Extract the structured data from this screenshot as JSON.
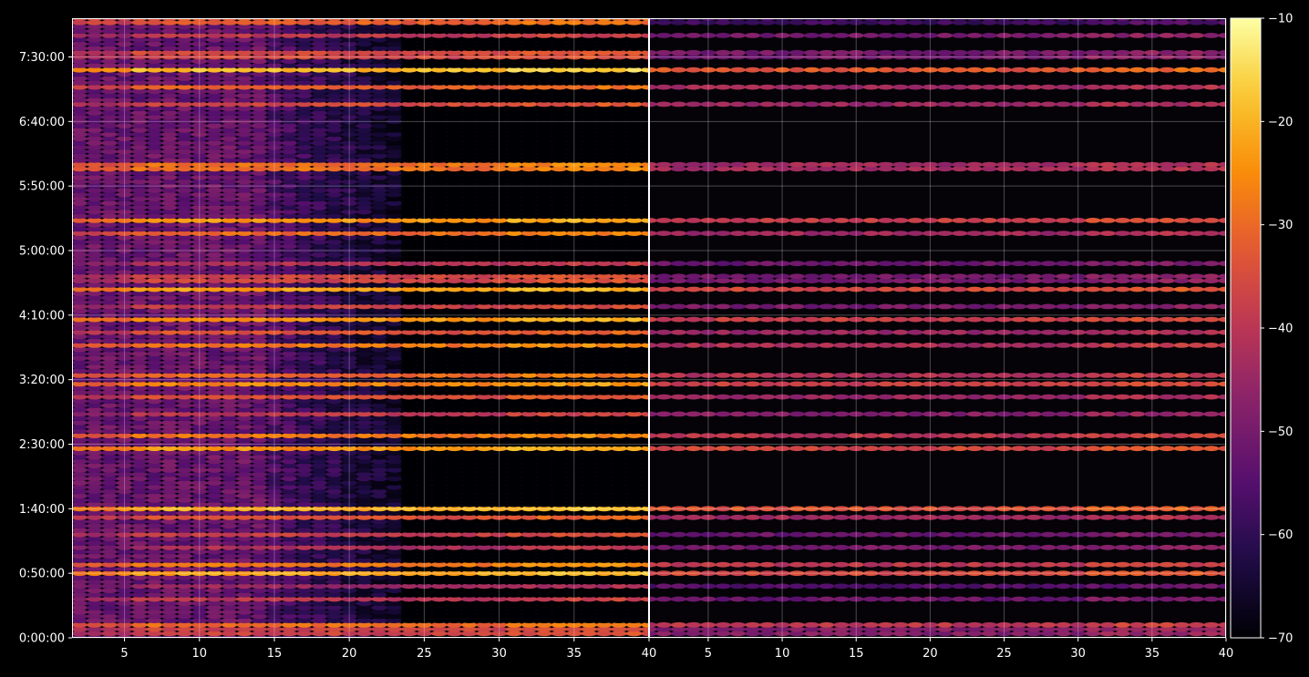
{
  "chart_data": {
    "type": "heatmap",
    "title": "",
    "xlabel": "",
    "ylabel": "",
    "panels": [
      {
        "name": "",
        "xlim": [
          1.5,
          40
        ],
        "x_ticks": [
          5,
          10,
          15,
          20,
          25,
          30,
          35,
          40
        ],
        "x_tick_labels": [
          "5",
          "10",
          "15",
          "20",
          "25",
          "30",
          "35",
          "40"
        ]
      },
      {
        "name": "",
        "xlim": [
          1,
          40
        ],
        "x_ticks": [
          5,
          10,
          15,
          20,
          25,
          30,
          35,
          40
        ],
        "x_tick_labels": [
          "5",
          "10",
          "15",
          "20",
          "25",
          "30",
          "35",
          "40"
        ]
      }
    ],
    "y_axis": {
      "range_seconds": [
        0,
        28800
      ],
      "ticks_seconds": [
        0,
        3000,
        6000,
        9000,
        12000,
        15000,
        18000,
        21000,
        24000,
        27000
      ],
      "tick_labels": [
        "0:00:00",
        "0:50:00",
        "1:40:00",
        "2:30:00",
        "3:20:00",
        "4:10:00",
        "5:00:00",
        "5:50:00",
        "6:40:00",
        "7:30:00"
      ]
    },
    "grid": true,
    "colorbar": {
      "colormap": "inferno",
      "range": [
        -70,
        -10
      ],
      "ticks": [
        -70,
        -60,
        -50,
        -40,
        -30,
        -20,
        -10
      ],
      "tick_labels": [
        "−70",
        "−60",
        "−50",
        "−40",
        "−30",
        "−20",
        "−10"
      ]
    },
    "bands": [
      {
        "t": 300,
        "left": -27,
        "right": -38
      },
      {
        "t": 600,
        "left": -30,
        "right": -40
      },
      {
        "t": 1800,
        "left": -40,
        "right": -52
      },
      {
        "t": 2400,
        "left": -45,
        "right": -55
      },
      {
        "t": 3000,
        "left": -22,
        "right": -36
      },
      {
        "t": 3400,
        "left": -28,
        "right": -40
      },
      {
        "t": 4200,
        "left": -42,
        "right": -50
      },
      {
        "t": 4800,
        "left": -38,
        "right": -52
      },
      {
        "t": 5600,
        "left": -34,
        "right": -44
      },
      {
        "t": 6000,
        "left": -21,
        "right": -34
      },
      {
        "t": 8800,
        "left": -24,
        "right": -36
      },
      {
        "t": 9400,
        "left": -28,
        "right": -40
      },
      {
        "t": 10400,
        "left": -40,
        "right": -48
      },
      {
        "t": 11200,
        "left": -35,
        "right": -45
      },
      {
        "t": 11800,
        "left": -26,
        "right": -38
      },
      {
        "t": 12200,
        "left": -30,
        "right": -41
      },
      {
        "t": 13600,
        "left": -28,
        "right": -42
      },
      {
        "t": 14200,
        "left": -34,
        "right": -45
      },
      {
        "t": 14800,
        "left": -24,
        "right": -38
      },
      {
        "t": 15400,
        "left": -38,
        "right": -50
      },
      {
        "t": 16200,
        "left": -23,
        "right": -36
      },
      {
        "t": 16700,
        "left": -27,
        "right": -40
      },
      {
        "t": 17400,
        "left": -42,
        "right": -52
      },
      {
        "t": 18800,
        "left": -30,
        "right": -44
      },
      {
        "t": 19400,
        "left": -24,
        "right": -38
      },
      {
        "t": 21900,
        "left": -19,
        "right": -34
      },
      {
        "t": 24800,
        "left": -36,
        "right": -45
      },
      {
        "t": 25600,
        "left": -32,
        "right": -44
      },
      {
        "t": 26400,
        "left": -19,
        "right": -33
      },
      {
        "t": 27100,
        "left": -26,
        "right": -40
      },
      {
        "t": 28000,
        "left": -40,
        "right": -50
      },
      {
        "t": 28700,
        "left": -22,
        "right": -48
      }
    ]
  }
}
